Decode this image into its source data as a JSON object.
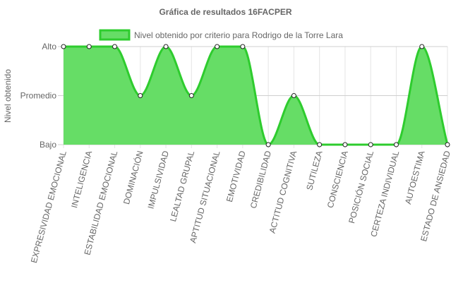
{
  "chart_data": {
    "type": "line",
    "title": "Gráfica de resultados 16FACPER",
    "ylabel": "Nivel obtenido",
    "xlabel": "",
    "y_categories": [
      "Bajo",
      "Promedio",
      "Alto"
    ],
    "categories": [
      "EXPRESIVIDAD EMOCIONAL",
      "INTELIGENCIA",
      "ESTABILIDAD EMOCIONAL",
      "DOMINACIÓN",
      "IMPULSIVIDAD",
      "LEALTAD GRUPAL",
      "APTITUD SITUACIONAL",
      "EMOTIVIDAD",
      "CREDIBILIDAD",
      "ACTITUD COGNITIVA",
      "SUTILEZA",
      "CONSCIENCIA",
      "POSICIÓN SOCIAL",
      "CERTEZA INDIVIDUAL",
      "AUTOESTIMA",
      "ESTADO DE ANSIEDAD"
    ],
    "series": [
      {
        "name": "Nivel obtenido por criterio para Rodrigo de la Torre Lara",
        "values": [
          "Alto",
          "Alto",
          "Alto",
          "Promedio",
          "Alto",
          "Promedio",
          "Alto",
          "Alto",
          "Bajo",
          "Promedio",
          "Bajo",
          "Bajo",
          "Bajo",
          "Bajo",
          "Alto",
          "Bajo"
        ],
        "fill_color": "#66dd66",
        "line_color": "#2ecc2e",
        "fill": true
      }
    ],
    "grid": true,
    "legend_position": "top"
  }
}
